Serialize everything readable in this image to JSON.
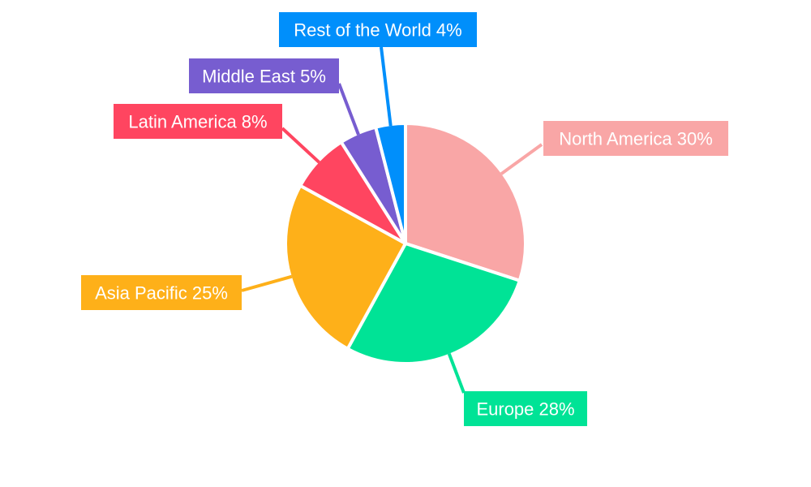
{
  "chart_data": {
    "type": "pie",
    "title": "",
    "slices": [
      {
        "label": "North America 30%",
        "value": 30,
        "color": "#F9A6A6"
      },
      {
        "label": "Europe 28%",
        "value": 28,
        "color": "#00E396"
      },
      {
        "label": "Asia Pacific 25%",
        "value": 25,
        "color": "#FEB019"
      },
      {
        "label": "Latin America 8%",
        "value": 8,
        "color": "#FF4560"
      },
      {
        "label": "Middle East 5%",
        "value": 5,
        "color": "#775DD0"
      },
      {
        "label": "Rest of the World 4%",
        "value": 4,
        "color": "#008FFB"
      }
    ],
    "legend": "none"
  }
}
